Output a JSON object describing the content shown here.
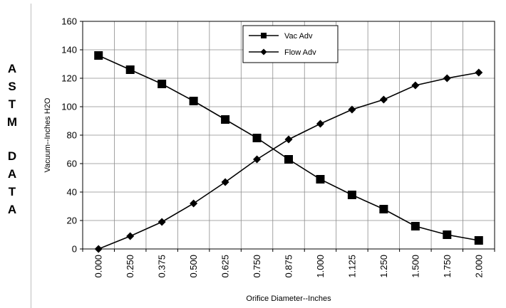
{
  "side_label": {
    "letters": [
      "A",
      "S",
      "T",
      "M",
      "",
      "D",
      "A",
      "T",
      "A"
    ]
  },
  "chart_data": {
    "type": "line",
    "title": "",
    "xlabel": "Orifice Diameter--Inches",
    "ylabel": "Vacuum--Inches H2O",
    "categories": [
      "0.000",
      "0.250",
      "0.375",
      "0.500",
      "0.625",
      "0.750",
      "0.875",
      "1.000",
      "1.125",
      "1.250",
      "1.500",
      "1.750",
      "2.000"
    ],
    "ylim": [
      0,
      160
    ],
    "yticks": [
      0,
      20,
      40,
      60,
      80,
      100,
      120,
      140,
      160
    ],
    "grid": true,
    "legend_position": "top-center",
    "series": [
      {
        "name": "Vac Adv",
        "marker": "square",
        "color": "#000000",
        "values": [
          136,
          126,
          116,
          104,
          91,
          78,
          63,
          49,
          38,
          28,
          16,
          10,
          6
        ]
      },
      {
        "name": "Flow Adv",
        "marker": "diamond",
        "color": "#000000",
        "values": [
          0,
          9,
          19,
          32,
          47,
          63,
          77,
          88,
          98,
          105,
          115,
          120,
          124
        ]
      }
    ]
  }
}
